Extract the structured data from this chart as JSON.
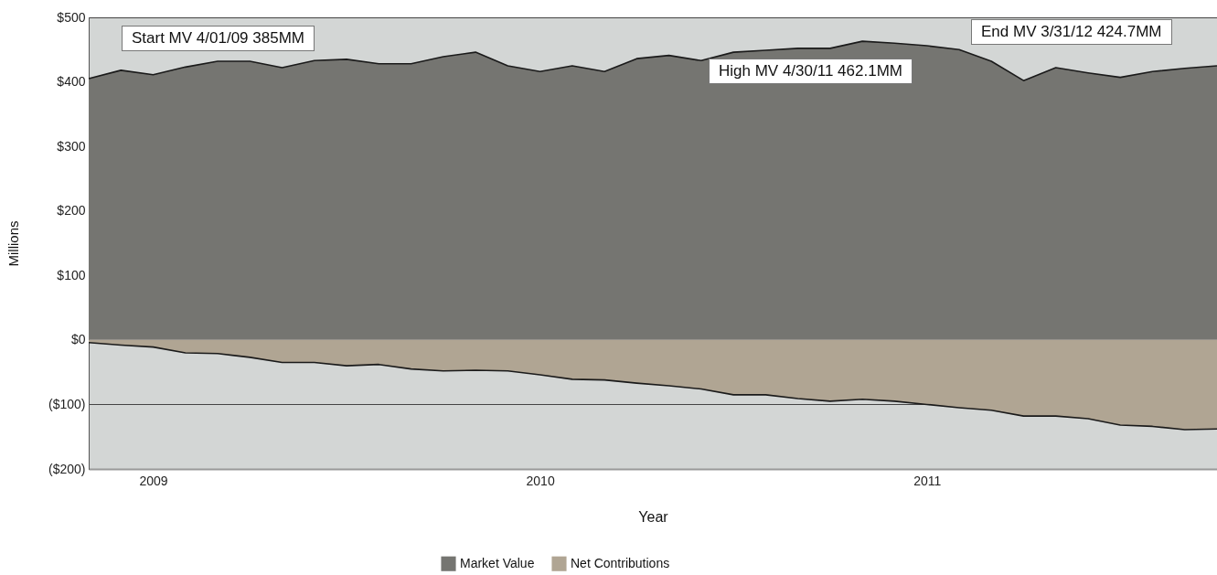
{
  "chart_data": {
    "type": "area",
    "xlabel": "Year",
    "ylabel": "Millions",
    "categories": [
      null,
      null,
      "2009",
      null,
      null,
      null,
      null,
      null,
      null,
      null,
      null,
      null,
      null,
      null,
      "2010",
      null,
      null,
      null,
      null,
      null,
      null,
      null,
      null,
      null,
      null,
      null,
      "2011",
      null,
      null,
      null,
      null,
      null,
      null,
      null,
      null,
      null
    ],
    "series": [
      {
        "name": "Market Value",
        "color": "#757571",
        "values": [
          405,
          418,
          411,
          423,
          432,
          432,
          422,
          433,
          435,
          428,
          428,
          439,
          446,
          425,
          416,
          425,
          416,
          436,
          441,
          433,
          446,
          449,
          452,
          452,
          463,
          460,
          456,
          450,
          432,
          402,
          422,
          414,
          407,
          416,
          421,
          425
        ]
      },
      {
        "name": "Net Contributions",
        "color": "#b0a593",
        "values": [
          -4,
          -8,
          -11,
          -20,
          -21,
          -27,
          -35,
          -35,
          -40,
          -38,
          -45,
          -48,
          -47,
          -48,
          -54,
          -61,
          -62,
          -67,
          -71,
          -76,
          -85,
          -85,
          -91,
          -95,
          -92,
          -95,
          -100,
          -105,
          -109,
          -118,
          -118,
          -122,
          -132,
          -134,
          -139,
          -138
        ]
      }
    ],
    "ylim": [
      -200,
      500
    ],
    "yticks": [
      {
        "value": -200,
        "label": "($200)"
      },
      {
        "value": -100,
        "label": "($100)"
      },
      {
        "value": 0,
        "label": "$0"
      },
      {
        "value": 100,
        "label": "$100"
      },
      {
        "value": 200,
        "label": "$200"
      },
      {
        "value": 300,
        "label": "$300"
      },
      {
        "value": 400,
        "label": "$400"
      },
      {
        "value": 500,
        "label": "$500"
      }
    ],
    "grid": "y",
    "legend": "bottom",
    "annotations": [
      "Start MV 4/01/09 385MM",
      "High MV 4/30/11 462.1MM",
      "End MV 3/31/12 424.7MM"
    ]
  }
}
